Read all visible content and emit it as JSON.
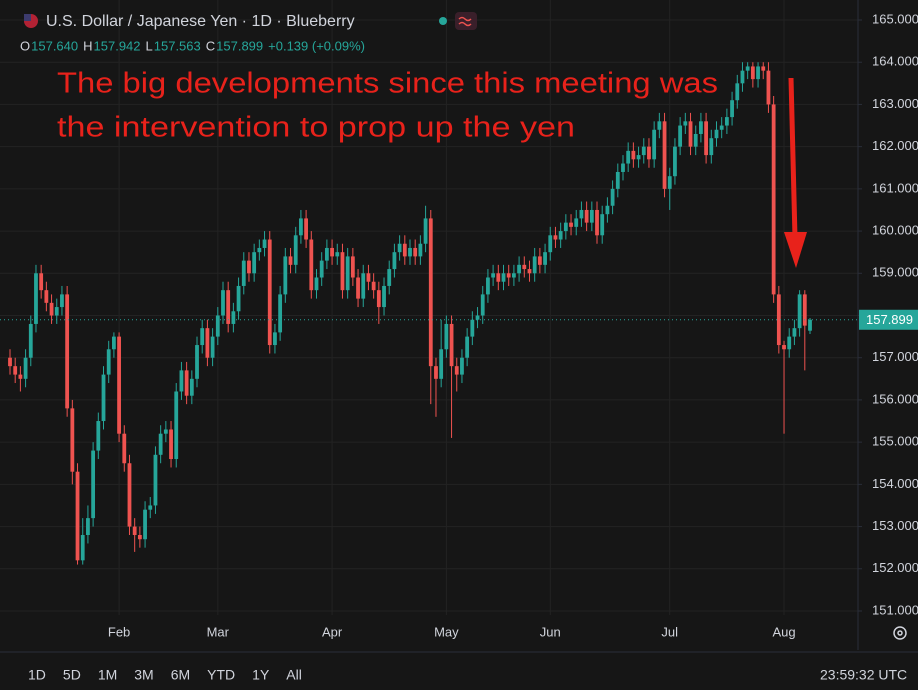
{
  "header": {
    "symbol": "U.S. Dollar / Japanese Yen · 1D · Blueberry",
    "ohlc": [
      {
        "key": "O",
        "value": "157.640"
      },
      {
        "key": "H",
        "value": "157.942"
      },
      {
        "key": "L",
        "value": "157.563"
      },
      {
        "key": "C",
        "value": "157.899"
      }
    ],
    "change": "+0.139 (+0.09%)"
  },
  "toolbar": {
    "ranges": [
      "1D",
      "5D",
      "1M",
      "3M",
      "6M",
      "YTD",
      "1Y",
      "All"
    ],
    "clock": "23:59:32 UTC"
  },
  "chart_data": {
    "type": "candlestick",
    "annotation": [
      "The big developments since this meeting was",
      "the intervention to prop up the yen"
    ],
    "up_color": "#26a69a",
    "down_color": "#ef5350",
    "annotation_color": "#e8221b",
    "grid": true,
    "categories": [
      null,
      null,
      null,
      null,
      null,
      null,
      null,
      null,
      null,
      null,
      null,
      null,
      null,
      null,
      null,
      null,
      null,
      null,
      null,
      null,
      null,
      "Feb",
      null,
      null,
      null,
      null,
      null,
      null,
      null,
      null,
      null,
      null,
      null,
      null,
      null,
      null,
      null,
      null,
      null,
      null,
      "Mar",
      null,
      null,
      null,
      null,
      null,
      null,
      null,
      null,
      null,
      null,
      null,
      null,
      null,
      null,
      null,
      null,
      null,
      null,
      null,
      null,
      null,
      "Apr",
      null,
      null,
      null,
      null,
      null,
      null,
      null,
      null,
      null,
      null,
      null,
      null,
      null,
      null,
      null,
      null,
      null,
      null,
      null,
      null,
      null,
      "May",
      null,
      null,
      null,
      null,
      null,
      null,
      null,
      null,
      null,
      null,
      null,
      null,
      null,
      null,
      null,
      null,
      null,
      null,
      null,
      "Jun",
      null,
      null,
      null,
      null,
      null,
      null,
      null,
      null,
      null,
      null,
      null,
      null,
      null,
      null,
      null,
      null,
      null,
      null,
      null,
      null,
      null,
      null,
      "Jul",
      null,
      null,
      null,
      null,
      null,
      null,
      null,
      null,
      null,
      null,
      null,
      null,
      null,
      null,
      null,
      null,
      null,
      null,
      null,
      null,
      null,
      "Aug",
      null,
      null,
      null,
      null,
      null
    ],
    "open": [
      157.0,
      156.8,
      156.6,
      156.5,
      157.0,
      157.8,
      159.0,
      158.6,
      158.3,
      158.0,
      158.2,
      158.5,
      155.8,
      154.3,
      152.2,
      152.8,
      153.2,
      154.8,
      155.5,
      156.6,
      157.2,
      157.5,
      155.2,
      154.5,
      153.0,
      152.8,
      152.7,
      153.4,
      153.5,
      154.7,
      155.2,
      155.3,
      154.6,
      156.2,
      156.7,
      156.1,
      156.5,
      157.3,
      157.7,
      157.0,
      157.5,
      158.0,
      158.6,
      157.8,
      158.1,
      158.7,
      159.3,
      159.0,
      159.5,
      159.6,
      159.8,
      157.3,
      157.6,
      158.5,
      159.4,
      159.2,
      159.9,
      160.3,
      159.8,
      158.6,
      158.9,
      159.3,
      159.6,
      159.4,
      159.5,
      158.6,
      159.4,
      158.9,
      158.4,
      159.0,
      158.8,
      158.6,
      158.2,
      158.7,
      159.1,
      159.5,
      159.7,
      159.4,
      159.6,
      159.4,
      159.7,
      160.3,
      156.8,
      156.5,
      157.2,
      157.8,
      156.8,
      156.6,
      157.0,
      157.5,
      157.9,
      158.0,
      158.5,
      158.9,
      159.0,
      158.8,
      159.0,
      158.9,
      159.0,
      159.2,
      159.1,
      159.0,
      159.4,
      159.2,
      159.5,
      159.9,
      159.8,
      160.0,
      160.2,
      160.1,
      160.3,
      160.5,
      160.2,
      160.5,
      159.9,
      160.4,
      160.6,
      161.0,
      161.4,
      161.6,
      161.9,
      161.7,
      161.8,
      162.0,
      161.7,
      162.4,
      162.6,
      161.0,
      161.3,
      162.0,
      162.5,
      162.6,
      162.0,
      162.3,
      162.6,
      161.8,
      162.2,
      162.4,
      162.5,
      162.7,
      163.1,
      163.5,
      163.8,
      163.9,
      163.6,
      163.9,
      163.8,
      163.0,
      158.5,
      157.3,
      157.2,
      157.5,
      157.7,
      158.5,
      157.64
    ],
    "high": [
      157.2,
      157.0,
      156.8,
      157.2,
      158.0,
      159.2,
      159.2,
      158.8,
      158.5,
      158.4,
      158.7,
      158.7,
      156.0,
      154.5,
      153.2,
      153.5,
      155.0,
      155.7,
      156.8,
      157.4,
      157.6,
      157.6,
      155.4,
      154.7,
      153.2,
      153.0,
      153.6,
      153.7,
      154.9,
      155.4,
      155.5,
      155.5,
      156.4,
      156.9,
      156.9,
      156.7,
      157.5,
      157.9,
      157.9,
      157.7,
      158.2,
      158.8,
      158.8,
      158.3,
      158.9,
      159.5,
      159.5,
      159.7,
      159.8,
      160.0,
      160.0,
      157.8,
      158.7,
      159.6,
      159.6,
      160.1,
      160.5,
      160.5,
      160.0,
      159.1,
      159.5,
      159.8,
      159.8,
      159.7,
      159.7,
      159.6,
      159.6,
      159.1,
      159.2,
      159.2,
      159.0,
      158.8,
      158.9,
      159.3,
      159.7,
      159.9,
      159.9,
      159.8,
      159.8,
      159.9,
      160.6,
      160.5,
      157.0,
      157.9,
      158.0,
      158.0,
      157.0,
      157.2,
      157.7,
      158.1,
      158.2,
      158.7,
      159.1,
      159.2,
      159.2,
      159.2,
      159.2,
      159.2,
      159.4,
      159.4,
      159.3,
      159.6,
      159.6,
      159.7,
      160.1,
      160.1,
      160.2,
      160.4,
      160.4,
      160.5,
      160.7,
      160.7,
      160.7,
      160.7,
      160.6,
      160.8,
      161.2,
      161.6,
      161.8,
      162.1,
      162.1,
      162.0,
      162.2,
      162.2,
      162.6,
      162.8,
      162.8,
      161.5,
      162.2,
      162.7,
      162.8,
      162.8,
      162.5,
      162.8,
      162.8,
      162.4,
      162.6,
      162.7,
      162.9,
      163.3,
      163.7,
      164.0,
      164.0,
      164.0,
      164.0,
      164.0,
      164.0,
      163.2,
      158.7,
      157.4,
      157.7,
      157.9,
      158.6,
      158.6,
      157.942
    ],
    "low": [
      156.6,
      156.4,
      156.2,
      156.3,
      156.8,
      157.6,
      158.4,
      158.1,
      157.8,
      157.8,
      158.0,
      155.6,
      154.0,
      152.1,
      152.1,
      152.6,
      153.0,
      154.6,
      155.3,
      156.4,
      157.0,
      155.0,
      154.3,
      152.8,
      152.4,
      152.5,
      152.5,
      153.2,
      153.3,
      154.5,
      155.0,
      154.4,
      154.4,
      156.0,
      155.9,
      155.9,
      156.3,
      157.1,
      156.8,
      156.8,
      157.3,
      157.8,
      157.6,
      157.6,
      157.9,
      158.5,
      158.8,
      158.8,
      159.3,
      159.4,
      157.1,
      157.1,
      157.4,
      158.3,
      159.0,
      159.0,
      159.7,
      159.6,
      158.4,
      158.4,
      158.7,
      159.1,
      159.2,
      159.2,
      158.4,
      158.4,
      158.7,
      158.2,
      158.2,
      158.6,
      158.4,
      157.8,
      158.0,
      158.5,
      158.9,
      159.3,
      159.2,
      159.2,
      159.2,
      159.2,
      159.5,
      155.9,
      155.6,
      156.3,
      157.0,
      155.1,
      156.2,
      156.4,
      156.8,
      157.3,
      157.7,
      157.8,
      158.3,
      158.7,
      158.6,
      158.6,
      158.7,
      158.7,
      158.8,
      158.9,
      158.8,
      158.8,
      159.0,
      159.0,
      159.3,
      159.6,
      159.6,
      159.8,
      159.9,
      159.9,
      160.1,
      160.0,
      160.0,
      159.7,
      159.7,
      160.2,
      160.4,
      160.8,
      161.2,
      161.4,
      161.5,
      161.5,
      161.6,
      161.5,
      161.5,
      162.2,
      160.8,
      160.5,
      161.1,
      161.8,
      162.3,
      161.8,
      161.8,
      162.1,
      161.6,
      161.6,
      162.0,
      162.2,
      162.3,
      162.5,
      162.9,
      163.3,
      163.6,
      163.4,
      163.4,
      163.6,
      162.8,
      158.3,
      157.1,
      155.2,
      157.0,
      157.3,
      157.5,
      156.7,
      157.563
    ],
    "close": [
      156.8,
      156.6,
      156.5,
      157.0,
      157.8,
      159.0,
      158.6,
      158.3,
      158.0,
      158.2,
      158.5,
      155.8,
      154.3,
      152.2,
      152.8,
      153.2,
      154.8,
      155.5,
      156.6,
      157.2,
      157.5,
      155.2,
      154.5,
      153.0,
      152.8,
      152.7,
      153.4,
      153.5,
      154.7,
      155.2,
      155.3,
      154.6,
      156.2,
      156.7,
      156.1,
      156.5,
      157.3,
      157.7,
      157.0,
      157.5,
      158.0,
      158.6,
      157.8,
      158.1,
      158.7,
      159.3,
      159.0,
      159.5,
      159.6,
      159.8,
      157.3,
      157.6,
      158.5,
      159.4,
      159.2,
      159.9,
      160.3,
      159.8,
      158.6,
      158.9,
      159.3,
      159.6,
      159.4,
      159.5,
      158.6,
      159.4,
      158.9,
      158.4,
      159.0,
      158.8,
      158.6,
      158.2,
      158.7,
      159.1,
      159.5,
      159.7,
      159.4,
      159.6,
      159.4,
      159.7,
      160.3,
      156.8,
      156.5,
      157.2,
      157.8,
      156.8,
      156.6,
      157.0,
      157.5,
      157.9,
      158.0,
      158.5,
      158.9,
      159.0,
      158.8,
      159.0,
      158.9,
      159.0,
      159.2,
      159.1,
      159.0,
      159.4,
      159.2,
      159.5,
      159.9,
      159.8,
      160.0,
      160.2,
      160.1,
      160.3,
      160.5,
      160.2,
      160.5,
      159.9,
      160.4,
      160.6,
      161.0,
      161.4,
      161.6,
      161.9,
      161.7,
      161.8,
      162.0,
      161.7,
      162.4,
      162.6,
      161.0,
      161.3,
      162.0,
      162.5,
      162.6,
      162.0,
      162.3,
      162.6,
      161.8,
      162.2,
      162.4,
      162.5,
      162.7,
      163.1,
      163.5,
      163.8,
      163.9,
      163.6,
      163.9,
      163.8,
      163.0,
      158.5,
      157.3,
      157.2,
      157.5,
      157.7,
      158.5,
      157.76,
      157.899
    ],
    "ylim": [
      150.905,
      165.474
    ],
    "yticks": [
      {
        "value": 151,
        "label": "151.000"
      },
      {
        "value": 152,
        "label": "152.000"
      },
      {
        "value": 153,
        "label": "153.000"
      },
      {
        "value": 154,
        "label": "154.000"
      },
      {
        "value": 155,
        "label": "155.000"
      },
      {
        "value": 156,
        "label": "156.000"
      },
      {
        "value": 157,
        "label": "157.000"
      },
      {
        "value": 158,
        "label": "158.000"
      },
      {
        "value": 159,
        "label": "159.000"
      },
      {
        "value": 160,
        "label": "160.000"
      },
      {
        "value": 161,
        "label": "161.000"
      },
      {
        "value": 162,
        "label": "162.000"
      },
      {
        "value": 163,
        "label": "163.000"
      },
      {
        "value": 164,
        "label": "164.000"
      },
      {
        "value": 165,
        "label": "165.000"
      }
    ]
  }
}
